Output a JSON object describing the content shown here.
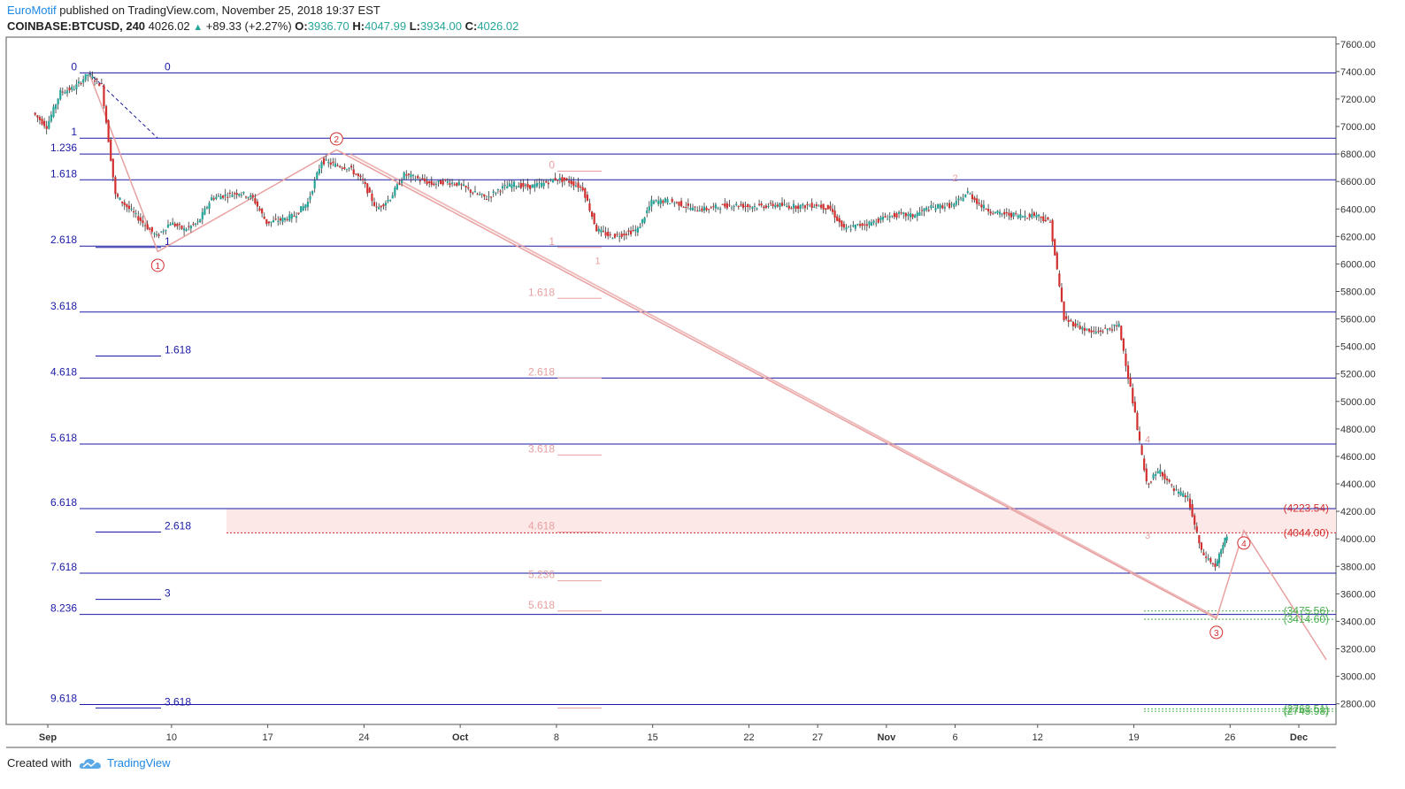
{
  "header": {
    "author": "EuroMotif",
    "published_text": "published on TradingView.com, November 25, 2018 19:37 EST",
    "symbol": "COINBASE:BTCUSD, 240",
    "last": "4026.02",
    "change": "+89.33 (+2.27%)",
    "open_label": "O:",
    "open": "3936.70",
    "high_label": "H:",
    "high": "4047.99",
    "low_label": "L:",
    "low": "3934.00",
    "close_label": "C:",
    "close": "4026.02"
  },
  "footer": {
    "created_with": "Created with",
    "brand": "TradingView"
  },
  "colors": {
    "blue": "#1a1aa6",
    "pink": "#e8a0a0",
    "red": "#d32f2f",
    "green": "#4caf50",
    "candle_up": "#26a69a",
    "candle_down": "#d32f2f"
  },
  "chart_data": {
    "type": "candlestick",
    "ylim": [
      2650,
      7650
    ],
    "y_ticks": [
      "7600.00",
      "7400.00",
      "7200.00",
      "7000.00",
      "6800.00",
      "6600.00",
      "6400.00",
      "6200.00",
      "6000.00",
      "5800.00",
      "5600.00",
      "5400.00",
      "5200.00",
      "5000.00",
      "4800.00",
      "4600.00",
      "4400.00",
      "4200.00",
      "4000.00",
      "3800.00",
      "3600.00",
      "3400.00",
      "3200.00",
      "3000.00",
      "2800.00"
    ],
    "x_ticks": [
      {
        "label": "Sep",
        "date": "2018-09-01"
      },
      {
        "label": "10",
        "date": "2018-09-10"
      },
      {
        "label": "17",
        "date": "2018-09-17"
      },
      {
        "label": "24",
        "date": "2018-09-24"
      },
      {
        "label": "Oct",
        "date": "2018-10-01"
      },
      {
        "label": "8",
        "date": "2018-10-08"
      },
      {
        "label": "15",
        "date": "2018-10-15"
      },
      {
        "label": "22",
        "date": "2018-10-22"
      },
      {
        "label": "27",
        "date": "2018-10-27"
      },
      {
        "label": "Nov",
        "date": "2018-11-01"
      },
      {
        "label": "6",
        "date": "2018-11-06"
      },
      {
        "label": "12",
        "date": "2018-11-12"
      },
      {
        "label": "19",
        "date": "2018-11-19"
      },
      {
        "label": "26",
        "date": "2018-11-26"
      },
      {
        "label": "Dec",
        "date": "2018-12-01"
      }
    ],
    "price_path": [
      [
        "2018-08-31",
        7100
      ],
      [
        "2018-09-01",
        7000
      ],
      [
        "2018-09-02",
        7250
      ],
      [
        "2018-09-03",
        7280
      ],
      [
        "2018-09-04",
        7380
      ],
      [
        "2018-09-05",
        7300
      ],
      [
        "2018-09-06",
        6500
      ],
      [
        "2018-09-07",
        6400
      ],
      [
        "2018-09-08",
        6300
      ],
      [
        "2018-09-09",
        6200
      ],
      [
        "2018-09-10",
        6300
      ],
      [
        "2018-09-11",
        6250
      ],
      [
        "2018-09-12",
        6300
      ],
      [
        "2018-09-13",
        6480
      ],
      [
        "2018-09-14",
        6500
      ],
      [
        "2018-09-15",
        6520
      ],
      [
        "2018-09-16",
        6480
      ],
      [
        "2018-09-17",
        6300
      ],
      [
        "2018-09-18",
        6320
      ],
      [
        "2018-09-19",
        6350
      ],
      [
        "2018-09-20",
        6450
      ],
      [
        "2018-09-21",
        6750
      ],
      [
        "2018-09-22",
        6720
      ],
      [
        "2018-09-23",
        6700
      ],
      [
        "2018-09-24",
        6600
      ],
      [
        "2018-09-25",
        6400
      ],
      [
        "2018-09-26",
        6480
      ],
      [
        "2018-09-27",
        6650
      ],
      [
        "2018-09-28",
        6620
      ],
      [
        "2018-09-29",
        6580
      ],
      [
        "2018-09-30",
        6600
      ],
      [
        "2018-10-01",
        6580
      ],
      [
        "2018-10-02",
        6520
      ],
      [
        "2018-10-03",
        6480
      ],
      [
        "2018-10-04",
        6550
      ],
      [
        "2018-10-05",
        6580
      ],
      [
        "2018-10-06",
        6560
      ],
      [
        "2018-10-07",
        6580
      ],
      [
        "2018-10-08",
        6620
      ],
      [
        "2018-10-09",
        6600
      ],
      [
        "2018-10-10",
        6550
      ],
      [
        "2018-10-11",
        6250
      ],
      [
        "2018-10-12",
        6200
      ],
      [
        "2018-10-13",
        6220
      ],
      [
        "2018-10-14",
        6250
      ],
      [
        "2018-10-15",
        6450
      ],
      [
        "2018-10-16",
        6460
      ],
      [
        "2018-10-17",
        6440
      ],
      [
        "2018-10-18",
        6400
      ],
      [
        "2018-10-19",
        6400
      ],
      [
        "2018-10-20",
        6420
      ],
      [
        "2018-10-21",
        6430
      ],
      [
        "2018-10-22",
        6420
      ],
      [
        "2018-10-23",
        6420
      ],
      [
        "2018-10-24",
        6430
      ],
      [
        "2018-10-25",
        6420
      ],
      [
        "2018-10-26",
        6420
      ],
      [
        "2018-10-27",
        6430
      ],
      [
        "2018-10-28",
        6400
      ],
      [
        "2018-10-29",
        6250
      ],
      [
        "2018-10-30",
        6280
      ],
      [
        "2018-10-31",
        6300
      ],
      [
        "2018-11-01",
        6340
      ],
      [
        "2018-11-02",
        6360
      ],
      [
        "2018-11-03",
        6350
      ],
      [
        "2018-11-04",
        6400
      ],
      [
        "2018-11-05",
        6420
      ],
      [
        "2018-11-06",
        6430
      ],
      [
        "2018-11-07",
        6520
      ],
      [
        "2018-11-08",
        6420
      ],
      [
        "2018-11-09",
        6370
      ],
      [
        "2018-11-10",
        6360
      ],
      [
        "2018-11-11",
        6350
      ],
      [
        "2018-11-12",
        6360
      ],
      [
        "2018-11-13",
        6300
      ],
      [
        "2018-11-14",
        5600
      ],
      [
        "2018-11-15",
        5550
      ],
      [
        "2018-11-16",
        5500
      ],
      [
        "2018-11-17",
        5520
      ],
      [
        "2018-11-18",
        5550
      ],
      [
        "2018-11-19",
        5000
      ],
      [
        "2018-11-20",
        4400
      ],
      [
        "2018-11-21",
        4500
      ],
      [
        "2018-11-22",
        4350
      ],
      [
        "2018-11-23",
        4300
      ],
      [
        "2018-11-24",
        3900
      ],
      [
        "2018-11-25",
        3800
      ],
      [
        "2018-11-25T20:00",
        4026.02
      ]
    ],
    "horizontal_levels": [
      {
        "label": "0",
        "price": 7390,
        "label_left": true,
        "label_right": true
      },
      {
        "label": "1",
        "price": 6915,
        "label_left": true
      },
      {
        "label": "1.236",
        "price": 6800,
        "label_left": true
      },
      {
        "label": "1.618",
        "price": 6612,
        "label_left": true
      },
      {
        "label": "2.618",
        "price": 6130,
        "label_left": true
      },
      {
        "label": "3.618",
        "price": 5650,
        "label_left": true
      },
      {
        "label": "4.618",
        "price": 5170,
        "label_left": true
      },
      {
        "label": "5.618",
        "price": 4690,
        "label_left": true
      },
      {
        "label": "6.618",
        "price": 4220,
        "label_left": true
      },
      {
        "label": "7.618",
        "price": 3750,
        "label_left": true
      },
      {
        "label": "8.236",
        "price": 3450,
        "label_left": true
      },
      {
        "label": "9.618",
        "price": 2795,
        "label_left": true
      }
    ],
    "extension_levels": [
      {
        "label": "1",
        "price": 6120
      },
      {
        "label": "1.618",
        "price": 5330
      },
      {
        "label": "2.618",
        "price": 4050
      },
      {
        "label": "3",
        "price": 3560
      },
      {
        "label": "3.618",
        "price": 2770
      }
    ],
    "pink_levels": [
      {
        "label": "0",
        "price": 6675
      },
      {
        "label": "1",
        "price": 6120
      },
      {
        "label": "1.618",
        "price": 5750
      },
      {
        "label": "2.618",
        "price": 5170
      },
      {
        "label": "3.618",
        "price": 4610
      },
      {
        "label": "4.618",
        "price": 4050
      },
      {
        "label": "5.236",
        "price": 3695
      },
      {
        "label": "5.618",
        "price": 3475
      },
      {
        "label": "",
        "price": 2770
      }
    ],
    "zone": {
      "from": 4044.0,
      "to": 4223.54,
      "start": "2018-09-14"
    },
    "price_labels": [
      {
        "text": "(4223.54)",
        "price": 4223.54,
        "color": "red"
      },
      {
        "text": "(4044.00)",
        "price": 4044.0,
        "color": "red"
      },
      {
        "text": "(3475.56)",
        "price": 3475.56,
        "color": "green"
      },
      {
        "text": "(3414.60)",
        "price": 3414.6,
        "color": "green"
      },
      {
        "text": "(2763.51)",
        "price": 2763.51,
        "color": "green"
      },
      {
        "text": "(2745.98)",
        "price": 2745.98,
        "color": "green"
      }
    ],
    "waves": [
      {
        "label": "1",
        "date": "2018-09-09",
        "price": 6080,
        "circled": true
      },
      {
        "label": "2",
        "date": "2018-09-22",
        "price": 6820,
        "circled": true
      },
      {
        "label": "3",
        "date": "2018-11-25",
        "price": 3410,
        "circled": true
      },
      {
        "label": "4",
        "date": "2018-11-27",
        "price": 4060,
        "circled": true
      }
    ],
    "minor_waves": [
      {
        "label": "1",
        "date": "2018-10-11",
        "price": 6000
      },
      {
        "label": "2",
        "date": "2018-11-06",
        "price": 6600
      },
      {
        "label": "3",
        "date": "2018-11-20",
        "price": 4000
      },
      {
        "label": "4",
        "date": "2018-11-20",
        "price": 4700
      }
    ],
    "projection": [
      [
        "2018-09-04",
        7390
      ],
      [
        "2018-09-09",
        6090
      ],
      [
        "2018-09-22",
        6830
      ],
      [
        "2018-11-25",
        3420
      ],
      [
        "2018-11-27",
        4060
      ],
      [
        "2018-12-03",
        3120
      ]
    ],
    "big_line": [
      [
        "2018-09-23",
        6800
      ],
      [
        "2018-11-25",
        3430
      ]
    ]
  }
}
